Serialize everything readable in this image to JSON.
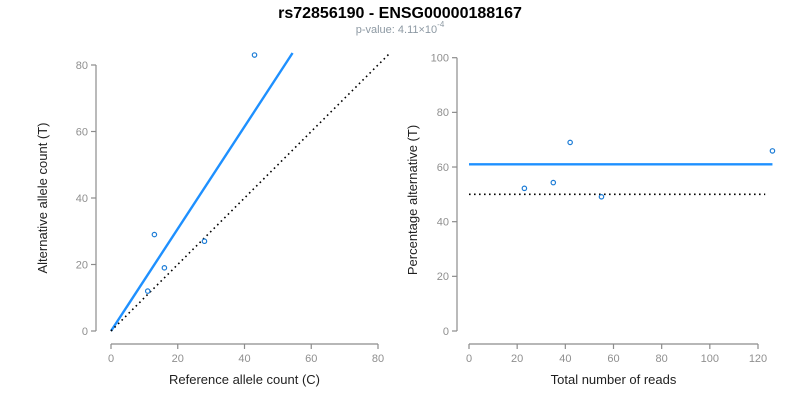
{
  "header": {
    "title": "rs72856190 - ENSG00000188167",
    "subtitle_base": "p-value: 4.11×10",
    "subtitle_exponent": "-4"
  },
  "colors": {
    "line_blue": "#1e90ff",
    "point_blue": "#1c7cd6",
    "dotted_black": "#000000",
    "axis_gray": "#8c8c8c",
    "tick_label_gray": "#8f8f8f",
    "axis_title": "#1f1f1f",
    "title_black": "#000000",
    "subtitle_gray": "#8d99a3"
  },
  "chart_data": [
    {
      "type": "scatter",
      "name": "allele-counts",
      "title": "rs72856190 - ENSG00000188167",
      "subtitle": "p-value: 4.11x10^-4",
      "xlabel": "Reference allele count (C)",
      "ylabel": "Alternative allele count (T)",
      "xlim": [
        0,
        86
      ],
      "ylim": [
        0,
        86
      ],
      "xticks": [
        0,
        20,
        40,
        60,
        80
      ],
      "yticks": [
        0,
        20,
        40,
        60,
        80
      ],
      "grid": false,
      "legend": "none",
      "marker": "open-circle",
      "points": [
        [
          11,
          12
        ],
        [
          13,
          29
        ],
        [
          16,
          19
        ],
        [
          28,
          27
        ],
        [
          43,
          83
        ]
      ],
      "lines": [
        {
          "name": "regression-line",
          "style": "solid",
          "color": "blue",
          "x1": 0,
          "y1": 0,
          "x2": 54.4,
          "y2": 83.6
        },
        {
          "name": "identity-line",
          "style": "dotted",
          "color": "black",
          "x1": 0,
          "y1": 0,
          "x2": 83.5,
          "y2": 83.5
        }
      ]
    },
    {
      "type": "scatter",
      "name": "percentage-vs-reads",
      "xlabel": "Total number of reads",
      "ylabel": "Percentage alternative (T)",
      "xlim": [
        0,
        130
      ],
      "ylim": [
        0,
        100
      ],
      "xticks": [
        0,
        20,
        40,
        60,
        80,
        100,
        120
      ],
      "yticks": [
        0,
        20,
        40,
        60,
        80,
        100
      ],
      "grid": false,
      "legend": "none",
      "marker": "open-circle",
      "points": [
        [
          23,
          52.2
        ],
        [
          35,
          54.3
        ],
        [
          42,
          69.0
        ],
        [
          55,
          49.1
        ],
        [
          126,
          65.9
        ]
      ],
      "lines": [
        {
          "name": "mean-percentage-line",
          "style": "solid",
          "color": "blue",
          "x1": 0,
          "y1": 61,
          "x2": 126,
          "y2": 61
        },
        {
          "name": "fifty-percent-line",
          "style": "dotted",
          "color": "black",
          "x1": 0,
          "y1": 50,
          "x2": 123,
          "y2": 50
        }
      ]
    }
  ]
}
